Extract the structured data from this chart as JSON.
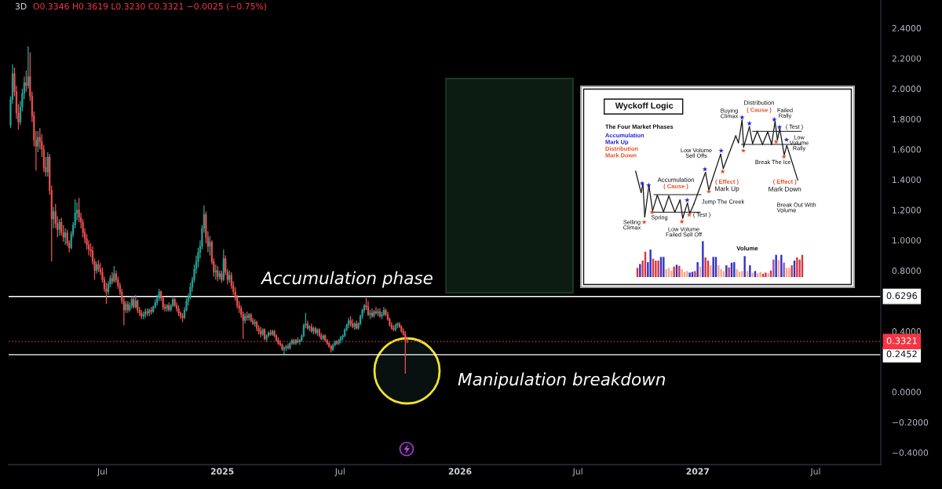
{
  "chart_data": {
    "type": "candlestick",
    "title": "3D",
    "subtitle": "O0.3346 H0.3619 L0.3230 C0.3321 −0.0025 (−0.75%)",
    "x": [
      "2024-02-11",
      "2024-02-14",
      "2024-02-17",
      "2024-02-20",
      "2024-02-23",
      "2024-02-26",
      "2024-02-29",
      "2024-03-03",
      "2024-03-06",
      "2024-03-09",
      "2024-03-12",
      "2024-03-15",
      "2024-03-18",
      "2024-03-21",
      "2024-03-24",
      "2024-03-27",
      "2024-03-30",
      "2024-04-02",
      "2024-04-05",
      "2024-04-08",
      "2024-04-11",
      "2024-04-14",
      "2024-04-17",
      "2024-04-20",
      "2024-04-23",
      "2024-04-26",
      "2024-04-29",
      "2024-05-02",
      "2024-05-05",
      "2024-05-08",
      "2024-05-11",
      "2024-05-14",
      "2024-05-17",
      "2024-05-20",
      "2024-05-23",
      "2024-05-26",
      "2024-05-29",
      "2024-06-01",
      "2024-06-04",
      "2024-06-07",
      "2024-06-10",
      "2024-06-13",
      "2024-06-16",
      "2024-06-19",
      "2024-06-22",
      "2024-06-25",
      "2024-06-28",
      "2024-07-01",
      "2024-07-04",
      "2024-07-07",
      "2024-07-10",
      "2024-07-13",
      "2024-07-16",
      "2024-07-19",
      "2024-07-22",
      "2024-07-25",
      "2024-07-28",
      "2024-07-31",
      "2024-08-03",
      "2024-08-06",
      "2024-08-09",
      "2024-08-12",
      "2024-08-15",
      "2024-08-18",
      "2024-08-21",
      "2024-08-24",
      "2024-08-27",
      "2024-08-30",
      "2024-09-02",
      "2024-09-05",
      "2024-09-08",
      "2024-09-11",
      "2024-09-14",
      "2024-09-17",
      "2024-09-20",
      "2024-09-23",
      "2024-09-26",
      "2024-09-29",
      "2024-10-02",
      "2024-10-05",
      "2024-10-08",
      "2024-10-11",
      "2024-10-14",
      "2024-10-17",
      "2024-10-20",
      "2024-10-23",
      "2024-10-26",
      "2024-10-29",
      "2024-11-01",
      "2024-11-04",
      "2024-11-07",
      "2024-11-10",
      "2024-11-13",
      "2024-11-16",
      "2024-11-19",
      "2024-11-22",
      "2024-11-25",
      "2024-11-28",
      "2024-12-01",
      "2024-12-04",
      "2024-12-07",
      "2024-12-10",
      "2024-12-13",
      "2024-12-16",
      "2024-12-19",
      "2024-12-22",
      "2024-12-25",
      "2024-12-28",
      "2024-12-31",
      "2025-01-03",
      "2025-01-06",
      "2025-01-09",
      "2025-01-12",
      "2025-01-15",
      "2025-01-18",
      "2025-01-21",
      "2025-01-24",
      "2025-01-27",
      "2025-01-30",
      "2025-02-02",
      "2025-02-05",
      "2025-02-08",
      "2025-02-11",
      "2025-02-14",
      "2025-02-17",
      "2025-02-20",
      "2025-02-23",
      "2025-02-26",
      "2025-03-01",
      "2025-03-04",
      "2025-03-07",
      "2025-03-10",
      "2025-03-13",
      "2025-03-16",
      "2025-03-19",
      "2025-03-22",
      "2025-03-25",
      "2025-03-28",
      "2025-03-31",
      "2025-04-03",
      "2025-04-06",
      "2025-04-09",
      "2025-04-12",
      "2025-04-15",
      "2025-04-18",
      "2025-04-21",
      "2025-04-24",
      "2025-04-27",
      "2025-04-30",
      "2025-05-03",
      "2025-05-06",
      "2025-05-09",
      "2025-05-12",
      "2025-05-15",
      "2025-05-18",
      "2025-05-21",
      "2025-05-24",
      "2025-05-27",
      "2025-05-30",
      "2025-06-02",
      "2025-06-05",
      "2025-06-08",
      "2025-06-11",
      "2025-06-14",
      "2025-06-17",
      "2025-06-20",
      "2025-06-23",
      "2025-06-26",
      "2025-06-29",
      "2025-07-02",
      "2025-07-05",
      "2025-07-08",
      "2025-07-11",
      "2025-07-14",
      "2025-07-17",
      "2025-07-20",
      "2025-07-23",
      "2025-07-26",
      "2025-07-29",
      "2025-08-01",
      "2025-08-04",
      "2025-08-07",
      "2025-08-10",
      "2025-08-13",
      "2025-08-16",
      "2025-08-19",
      "2025-08-22",
      "2025-08-25",
      "2025-08-28",
      "2025-08-31",
      "2025-09-03",
      "2025-09-06",
      "2025-09-09",
      "2025-09-12",
      "2025-09-15",
      "2025-09-18",
      "2025-09-21",
      "2025-09-24",
      "2025-09-27",
      "2025-09-30",
      "2025-10-03",
      "2025-10-06",
      "2025-10-09",
      "2025-10-12"
    ],
    "ohlc": [
      [
        1.76,
        1.95,
        1.74,
        1.93
      ],
      [
        1.93,
        2.16,
        1.9,
        2.1
      ],
      [
        2.1,
        2.14,
        1.95,
        1.98
      ],
      [
        1.98,
        2.02,
        1.8,
        1.84
      ],
      [
        1.84,
        1.9,
        1.73,
        1.78
      ],
      [
        1.78,
        1.92,
        1.76,
        1.88
      ],
      [
        1.88,
        2.0,
        1.85,
        1.97
      ],
      [
        1.97,
        2.08,
        1.93,
        2.04
      ],
      [
        2.04,
        2.12,
        1.98,
        2.02
      ],
      [
        2.02,
        2.28,
        2.0,
        2.08
      ],
      [
        2.08,
        2.24,
        1.92,
        1.95
      ],
      [
        1.95,
        1.98,
        1.78,
        1.82
      ],
      [
        1.82,
        1.85,
        1.62,
        1.66
      ],
      [
        1.66,
        1.72,
        1.46,
        1.62
      ],
      [
        1.62,
        1.72,
        1.58,
        1.68
      ],
      [
        1.68,
        1.74,
        1.6,
        1.65
      ],
      [
        1.65,
        1.7,
        1.55,
        1.6
      ],
      [
        1.6,
        1.63,
        1.45,
        1.48
      ],
      [
        1.48,
        1.55,
        1.42,
        1.45
      ],
      [
        1.45,
        1.58,
        1.42,
        1.55
      ],
      [
        1.55,
        1.57,
        1.3,
        1.33
      ],
      [
        1.33,
        1.36,
        0.86,
        1.14
      ],
      [
        1.14,
        1.22,
        1.08,
        1.19
      ],
      [
        1.19,
        1.24,
        1.08,
        1.11
      ],
      [
        1.11,
        1.16,
        1.02,
        1.07
      ],
      [
        1.07,
        1.14,
        1.03,
        1.12
      ],
      [
        1.12,
        1.15,
        1.03,
        1.05
      ],
      [
        1.05,
        1.1,
        0.99,
        1.02
      ],
      [
        1.02,
        1.08,
        0.97,
        1.05
      ],
      [
        1.05,
        1.07,
        0.96,
        0.98
      ],
      [
        0.98,
        1.0,
        0.92,
        0.95
      ],
      [
        0.95,
        1.06,
        0.94,
        1.04
      ],
      [
        1.04,
        1.12,
        1.02,
        1.1
      ],
      [
        1.1,
        1.27,
        1.08,
        1.18
      ],
      [
        1.18,
        1.25,
        1.13,
        1.2
      ],
      [
        1.2,
        1.28,
        1.12,
        1.15
      ],
      [
        1.15,
        1.18,
        1.08,
        1.12
      ],
      [
        1.12,
        1.14,
        1.02,
        1.05
      ],
      [
        1.05,
        1.08,
        0.98,
        1.01
      ],
      [
        1.01,
        1.04,
        0.94,
        0.97
      ],
      [
        0.97,
        1.0,
        0.9,
        0.94
      ],
      [
        0.94,
        0.98,
        0.89,
        0.93
      ],
      [
        0.93,
        0.96,
        0.84,
        0.86
      ],
      [
        0.86,
        0.88,
        0.74,
        0.8
      ],
      [
        0.8,
        0.86,
        0.78,
        0.84
      ],
      [
        0.84,
        0.87,
        0.79,
        0.81
      ],
      [
        0.81,
        0.85,
        0.77,
        0.79
      ],
      [
        0.79,
        0.82,
        0.72,
        0.74
      ],
      [
        0.74,
        0.76,
        0.66,
        0.68
      ],
      [
        0.68,
        0.72,
        0.58,
        0.66
      ],
      [
        0.66,
        0.73,
        0.64,
        0.71
      ],
      [
        0.71,
        0.77,
        0.69,
        0.75
      ],
      [
        0.75,
        0.79,
        0.71,
        0.73
      ],
      [
        0.73,
        0.83,
        0.72,
        0.78
      ],
      [
        0.78,
        0.8,
        0.72,
        0.74
      ],
      [
        0.74,
        0.76,
        0.68,
        0.7
      ],
      [
        0.7,
        0.72,
        0.64,
        0.66
      ],
      [
        0.66,
        0.68,
        0.58,
        0.6
      ],
      [
        0.6,
        0.62,
        0.44,
        0.54
      ],
      [
        0.54,
        0.6,
        0.52,
        0.58
      ],
      [
        0.58,
        0.6,
        0.52,
        0.54
      ],
      [
        0.54,
        0.59,
        0.53,
        0.57
      ],
      [
        0.57,
        0.63,
        0.55,
        0.61
      ],
      [
        0.61,
        0.63,
        0.55,
        0.56
      ],
      [
        0.56,
        0.64,
        0.55,
        0.6
      ],
      [
        0.6,
        0.61,
        0.52,
        0.54
      ],
      [
        0.54,
        0.56,
        0.5,
        0.52
      ],
      [
        0.52,
        0.54,
        0.48,
        0.5
      ],
      [
        0.5,
        0.53,
        0.48,
        0.51
      ],
      [
        0.51,
        0.55,
        0.49,
        0.53
      ],
      [
        0.53,
        0.55,
        0.5,
        0.52
      ],
      [
        0.52,
        0.55,
        0.5,
        0.54
      ],
      [
        0.54,
        0.56,
        0.51,
        0.53
      ],
      [
        0.53,
        0.57,
        0.52,
        0.56
      ],
      [
        0.56,
        0.61,
        0.55,
        0.59
      ],
      [
        0.59,
        0.64,
        0.57,
        0.62
      ],
      [
        0.62,
        0.68,
        0.6,
        0.66
      ],
      [
        0.66,
        0.67,
        0.6,
        0.62
      ],
      [
        0.62,
        0.63,
        0.54,
        0.56
      ],
      [
        0.56,
        0.58,
        0.53,
        0.55
      ],
      [
        0.55,
        0.58,
        0.53,
        0.57
      ],
      [
        0.57,
        0.59,
        0.53,
        0.54
      ],
      [
        0.54,
        0.58,
        0.53,
        0.57
      ],
      [
        0.57,
        0.63,
        0.56,
        0.61
      ],
      [
        0.61,
        0.62,
        0.56,
        0.57
      ],
      [
        0.57,
        0.59,
        0.53,
        0.55
      ],
      [
        0.55,
        0.57,
        0.5,
        0.52
      ],
      [
        0.52,
        0.53,
        0.48,
        0.5
      ],
      [
        0.5,
        0.52,
        0.46,
        0.49
      ],
      [
        0.49,
        0.56,
        0.48,
        0.54
      ],
      [
        0.54,
        0.62,
        0.53,
        0.6
      ],
      [
        0.6,
        0.65,
        0.57,
        0.63
      ],
      [
        0.63,
        0.72,
        0.61,
        0.69
      ],
      [
        0.69,
        0.76,
        0.66,
        0.74
      ],
      [
        0.74,
        0.84,
        0.72,
        0.81
      ],
      [
        0.81,
        0.9,
        0.78,
        0.86
      ],
      [
        0.86,
        0.95,
        0.82,
        0.92
      ],
      [
        0.92,
        1.0,
        0.88,
        0.96
      ],
      [
        0.96,
        1.1,
        0.94,
        1.08
      ],
      [
        1.08,
        1.23,
        1.05,
        1.17
      ],
      [
        1.17,
        1.19,
        0.98,
        1.02
      ],
      [
        1.02,
        1.06,
        0.92,
        0.96
      ],
      [
        0.96,
        1.03,
        0.9,
        0.99
      ],
      [
        0.99,
        1.0,
        0.84,
        0.86
      ],
      [
        0.86,
        0.88,
        0.76,
        0.79
      ],
      [
        0.79,
        0.84,
        0.74,
        0.8
      ],
      [
        0.8,
        0.83,
        0.73,
        0.76
      ],
      [
        0.76,
        0.8,
        0.74,
        0.78
      ],
      [
        0.78,
        0.8,
        0.72,
        0.74
      ],
      [
        0.74,
        0.94,
        0.73,
        0.88
      ],
      [
        0.88,
        0.9,
        0.77,
        0.79
      ],
      [
        0.79,
        0.81,
        0.71,
        0.74
      ],
      [
        0.74,
        0.8,
        0.72,
        0.77
      ],
      [
        0.77,
        0.79,
        0.68,
        0.7
      ],
      [
        0.7,
        0.73,
        0.64,
        0.66
      ],
      [
        0.66,
        0.69,
        0.6,
        0.62
      ],
      [
        0.62,
        0.64,
        0.55,
        0.57
      ],
      [
        0.57,
        0.6,
        0.52,
        0.55
      ],
      [
        0.55,
        0.57,
        0.49,
        0.51
      ],
      [
        0.51,
        0.53,
        0.35,
        0.47
      ],
      [
        0.47,
        0.52,
        0.45,
        0.5
      ],
      [
        0.5,
        0.53,
        0.47,
        0.49
      ],
      [
        0.49,
        0.52,
        0.47,
        0.51
      ],
      [
        0.51,
        0.52,
        0.46,
        0.47
      ],
      [
        0.47,
        0.49,
        0.44,
        0.45
      ],
      [
        0.45,
        0.48,
        0.43,
        0.46
      ],
      [
        0.46,
        0.47,
        0.4,
        0.42
      ],
      [
        0.42,
        0.44,
        0.38,
        0.4
      ],
      [
        0.4,
        0.43,
        0.36,
        0.38
      ],
      [
        0.38,
        0.42,
        0.37,
        0.41
      ],
      [
        0.41,
        0.42,
        0.34,
        0.35
      ],
      [
        0.35,
        0.38,
        0.33,
        0.37
      ],
      [
        0.37,
        0.4,
        0.36,
        0.39
      ],
      [
        0.39,
        0.41,
        0.37,
        0.38
      ],
      [
        0.38,
        0.41,
        0.37,
        0.4
      ],
      [
        0.4,
        0.41,
        0.36,
        0.37
      ],
      [
        0.37,
        0.38,
        0.33,
        0.34
      ],
      [
        0.34,
        0.36,
        0.31,
        0.32
      ],
      [
        0.32,
        0.34,
        0.3,
        0.31
      ],
      [
        0.31,
        0.32,
        0.27,
        0.28
      ],
      [
        0.28,
        0.3,
        0.25,
        0.29
      ],
      [
        0.29,
        0.31,
        0.27,
        0.3
      ],
      [
        0.3,
        0.32,
        0.28,
        0.29
      ],
      [
        0.29,
        0.33,
        0.28,
        0.32
      ],
      [
        0.32,
        0.35,
        0.31,
        0.34
      ],
      [
        0.34,
        0.35,
        0.31,
        0.32
      ],
      [
        0.32,
        0.35,
        0.31,
        0.34
      ],
      [
        0.34,
        0.36,
        0.32,
        0.33
      ],
      [
        0.33,
        0.35,
        0.31,
        0.34
      ],
      [
        0.34,
        0.38,
        0.33,
        0.37
      ],
      [
        0.37,
        0.45,
        0.36,
        0.44
      ],
      [
        0.44,
        0.52,
        0.42,
        0.45
      ],
      [
        0.45,
        0.47,
        0.41,
        0.42
      ],
      [
        0.42,
        0.44,
        0.4,
        0.43
      ],
      [
        0.43,
        0.45,
        0.39,
        0.4
      ],
      [
        0.4,
        0.43,
        0.38,
        0.42
      ],
      [
        0.42,
        0.43,
        0.38,
        0.39
      ],
      [
        0.39,
        0.42,
        0.37,
        0.41
      ],
      [
        0.41,
        0.42,
        0.36,
        0.37
      ],
      [
        0.37,
        0.39,
        0.34,
        0.35
      ],
      [
        0.35,
        0.38,
        0.34,
        0.37
      ],
      [
        0.37,
        0.38,
        0.33,
        0.34
      ],
      [
        0.34,
        0.35,
        0.31,
        0.32
      ],
      [
        0.32,
        0.33,
        0.29,
        0.3
      ],
      [
        0.3,
        0.31,
        0.26,
        0.28
      ],
      [
        0.28,
        0.32,
        0.27,
        0.31
      ],
      [
        0.31,
        0.34,
        0.3,
        0.33
      ],
      [
        0.33,
        0.34,
        0.31,
        0.32
      ],
      [
        0.32,
        0.35,
        0.31,
        0.34
      ],
      [
        0.34,
        0.37,
        0.32,
        0.36
      ],
      [
        0.36,
        0.38,
        0.34,
        0.37
      ],
      [
        0.37,
        0.42,
        0.36,
        0.41
      ],
      [
        0.41,
        0.45,
        0.4,
        0.44
      ],
      [
        0.44,
        0.49,
        0.42,
        0.47
      ],
      [
        0.47,
        0.5,
        0.43,
        0.45
      ],
      [
        0.45,
        0.48,
        0.42,
        0.43
      ],
      [
        0.43,
        0.46,
        0.41,
        0.45
      ],
      [
        0.45,
        0.47,
        0.41,
        0.42
      ],
      [
        0.42,
        0.46,
        0.41,
        0.45
      ],
      [
        0.45,
        0.51,
        0.44,
        0.5
      ],
      [
        0.5,
        0.55,
        0.48,
        0.54
      ],
      [
        0.54,
        0.58,
        0.52,
        0.57
      ],
      [
        0.57,
        0.62,
        0.54,
        0.56
      ],
      [
        0.56,
        0.6,
        0.5,
        0.51
      ],
      [
        0.51,
        0.54,
        0.48,
        0.52
      ],
      [
        0.52,
        0.55,
        0.49,
        0.5
      ],
      [
        0.5,
        0.54,
        0.49,
        0.53
      ],
      [
        0.53,
        0.56,
        0.51,
        0.52
      ],
      [
        0.52,
        0.55,
        0.5,
        0.53
      ],
      [
        0.53,
        0.55,
        0.49,
        0.5
      ],
      [
        0.5,
        0.53,
        0.48,
        0.51
      ],
      [
        0.51,
        0.56,
        0.5,
        0.54
      ],
      [
        0.54,
        0.55,
        0.5,
        0.51
      ],
      [
        0.51,
        0.53,
        0.47,
        0.48
      ],
      [
        0.48,
        0.49,
        0.43,
        0.44
      ],
      [
        0.44,
        0.46,
        0.41,
        0.42
      ],
      [
        0.42,
        0.44,
        0.4,
        0.41
      ],
      [
        0.41,
        0.45,
        0.4,
        0.44
      ],
      [
        0.44,
        0.46,
        0.42,
        0.45
      ],
      [
        0.45,
        0.46,
        0.42,
        0.43
      ],
      [
        0.43,
        0.44,
        0.39,
        0.4
      ],
      [
        0.4,
        0.42,
        0.37,
        0.38
      ],
      [
        0.38,
        0.4,
        0.12,
        0.34
      ],
      [
        0.3346,
        0.3619,
        0.323,
        0.3321
      ]
    ],
    "colors": [
      "#26a69a",
      "#26a69a",
      "#ef5350",
      "#ef5350",
      "#ef5350",
      "#26a69a",
      "#26a69a",
      "#26a69a",
      "#ef5350",
      "#26a69a",
      "#ef5350",
      "#ef5350",
      "#ef5350",
      "#ef5350",
      "#26a69a",
      "#ef5350",
      "#ef5350",
      "#ef5350",
      "#ef5350",
      "#26a69a",
      "#ef5350",
      "#ef5350",
      "#26a69a",
      "#ef5350",
      "#ef5350",
      "#26a69a",
      "#ef5350",
      "#ef5350",
      "#26a69a",
      "#ef5350",
      "#ef5350",
      "#26a69a",
      "#26a69a",
      "#26a69a",
      "#26a69a",
      "#ef5350",
      "#ef5350",
      "#ef5350",
      "#ef5350",
      "#ef5350",
      "#ef5350",
      "#ef5350",
      "#ef5350",
      "#ef5350",
      "#26a69a",
      "#ef5350",
      "#ef5350",
      "#ef5350",
      "#ef5350",
      "#ef5350",
      "#26a69a",
      "#26a69a",
      "#ef5350",
      "#26a69a",
      "#ef5350",
      "#ef5350",
      "#ef5350",
      "#ef5350",
      "#ef5350",
      "#26a69a",
      "#ef5350",
      "#26a69a",
      "#26a69a",
      "#ef5350",
      "#26a69a",
      "#ef5350",
      "#ef5350",
      "#ef5350",
      "#26a69a",
      "#26a69a",
      "#ef5350",
      "#26a69a",
      "#ef5350",
      "#26a69a",
      "#26a69a",
      "#26a69a",
      "#26a69a",
      "#ef5350",
      "#ef5350",
      "#ef5350",
      "#26a69a",
      "#ef5350",
      "#26a69a",
      "#26a69a",
      "#ef5350",
      "#ef5350",
      "#ef5350",
      "#ef5350",
      "#ef5350",
      "#26a69a",
      "#26a69a",
      "#26a69a",
      "#26a69a",
      "#26a69a",
      "#26a69a",
      "#26a69a",
      "#26a69a",
      "#26a69a",
      "#26a69a",
      "#26a69a",
      "#ef5350",
      "#ef5350",
      "#26a69a",
      "#ef5350",
      "#ef5350",
      "#26a69a",
      "#ef5350",
      "#26a69a",
      "#ef5350",
      "#26a69a",
      "#ef5350",
      "#ef5350",
      "#26a69a",
      "#ef5350",
      "#ef5350",
      "#ef5350",
      "#ef5350",
      "#ef5350",
      "#ef5350",
      "#ef5350",
      "#26a69a",
      "#ef5350",
      "#26a69a",
      "#ef5350",
      "#ef5350",
      "#26a69a",
      "#ef5350",
      "#ef5350",
      "#ef5350",
      "#26a69a",
      "#ef5350",
      "#26a69a",
      "#26a69a",
      "#ef5350",
      "#26a69a",
      "#ef5350",
      "#ef5350",
      "#ef5350",
      "#ef5350",
      "#ef5350",
      "#26a69a",
      "#26a69a",
      "#ef5350",
      "#26a69a",
      "#26a69a",
      "#ef5350",
      "#26a69a",
      "#ef5350",
      "#26a69a",
      "#26a69a",
      "#26a69a",
      "#26a69a",
      "#ef5350",
      "#26a69a",
      "#ef5350",
      "#26a69a",
      "#ef5350",
      "#26a69a",
      "#ef5350",
      "#ef5350",
      "#26a69a",
      "#ef5350",
      "#ef5350",
      "#ef5350",
      "#ef5350",
      "#26a69a",
      "#26a69a",
      "#ef5350",
      "#26a69a",
      "#26a69a",
      "#26a69a",
      "#26a69a",
      "#26a69a",
      "#26a69a",
      "#ef5350",
      "#ef5350",
      "#26a69a",
      "#ef5350",
      "#26a69a",
      "#26a69a",
      "#26a69a",
      "#26a69a",
      "#ef5350",
      "#ef5350",
      "#26a69a",
      "#ef5350",
      "#26a69a",
      "#ef5350",
      "#26a69a",
      "#ef5350",
      "#26a69a",
      "#26a69a",
      "#ef5350",
      "#ef5350",
      "#ef5350",
      "#ef5350",
      "#ef5350",
      "#26a69a",
      "#26a69a",
      "#ef5350",
      "#ef5350",
      "#ef5350",
      "#ef5350",
      "#ef5350"
    ],
    "xlim": [
      "2024-02-08",
      "2027-10-09"
    ],
    "xticks": [
      {
        "value": "2024-07-01",
        "label": "Jul"
      },
      {
        "value": "2025-01-01",
        "label": "2025"
      },
      {
        "value": "2025-07-01",
        "label": "Jul"
      },
      {
        "value": "2026-01-01",
        "label": "2026"
      },
      {
        "value": "2026-07-01",
        "label": "Jul"
      },
      {
        "value": "2027-01-01",
        "label": "2027"
      },
      {
        "value": "2027-07-01",
        "label": "Jul"
      }
    ],
    "ylim": [
      -0.48,
      2.585
    ],
    "yticks": [
      {
        "value": 2.4,
        "label": "2.4000"
      },
      {
        "value": 2.2,
        "label": "2.2000"
      },
      {
        "value": 2.0,
        "label": "2.0000"
      },
      {
        "value": 1.8,
        "label": "1.8000"
      },
      {
        "value": 1.6,
        "label": "1.6000"
      },
      {
        "value": 1.4,
        "label": "1.4000"
      },
      {
        "value": 1.2,
        "label": "1.2000"
      },
      {
        "value": 1.0,
        "label": "1.0000"
      },
      {
        "value": 0.8,
        "label": "0.8000"
      },
      {
        "value": 0.4,
        "label": "0.4000"
      },
      {
        "value": 0,
        "label": "0.0000"
      },
      {
        "value": -0.2,
        "label": "−0.2000"
      },
      {
        "value": -0.4,
        "label": "−0.4000"
      }
    ],
    "ref_lines": [
      {
        "axis": "y",
        "value": 0.6296,
        "label": "0.6296",
        "color": "#ffffff"
      },
      {
        "axis": "y",
        "value": 0.2452,
        "label": "0.2452",
        "color": "#ffffff"
      },
      {
        "axis": "y",
        "value": 0.3321,
        "label": "0.3321",
        "color": "#f23645",
        "line_style": "dotted"
      }
    ],
    "annotations": [
      "Accumulation phase",
      "Manipulation breakdown",
      "Wyckoff Logic",
      "The Four Market Phases",
      "Accumulation",
      "Mark Up",
      "Distribution",
      "Mark Down",
      "Accumulation",
      "( Cause )",
      "Selling\nClimax",
      "Spring",
      "Low Volume\nFailed Sell Off",
      "( Test )",
      "Low Volume\nSell Offs",
      "( Effect )",
      "Mark Up",
      "Jump The Creek",
      "Buying\nClimax",
      "Distribution",
      "( Cause )",
      "Failed\nRally",
      "( Test )",
      "Low\nVolume\nRally",
      "Break The Ice",
      "( Effect )",
      "Mark Down",
      "Break Out With\nVolume",
      "Volume"
    ]
  }
}
